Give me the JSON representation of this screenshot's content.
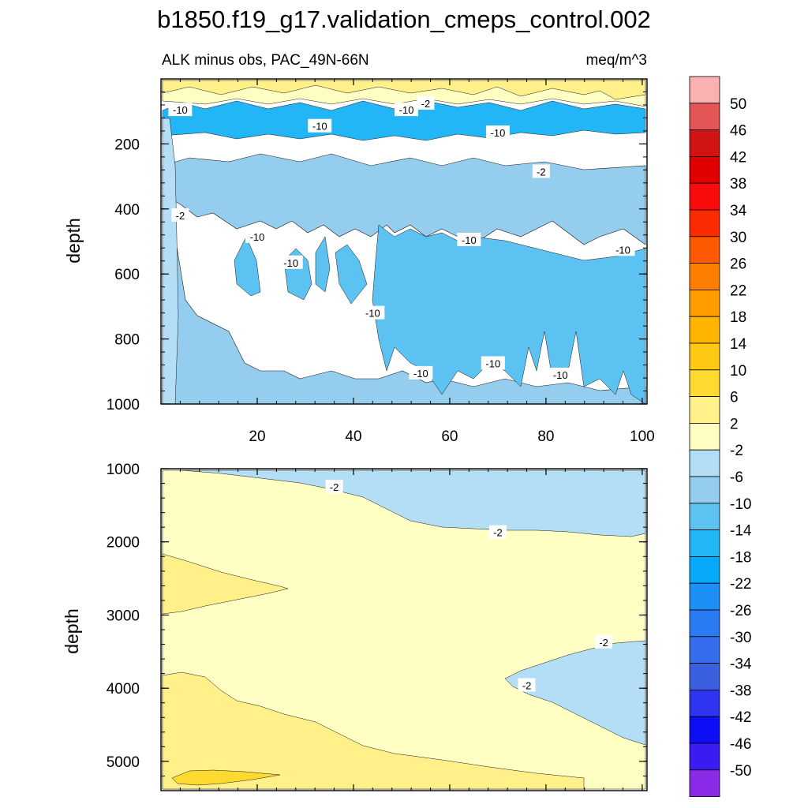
{
  "colors": {
    "pos_50": "#fbb1b1",
    "pos_46": "#e45656",
    "pos_42": "#d01313",
    "pos_38": "#e00000",
    "pos_34": "#fb0c0c",
    "pos_30": "#fc2a00",
    "pos_26": "#fc5900",
    "pos_22": "#fd7e00",
    "pos_18": "#fe9c00",
    "pos_14": "#feb400",
    "pos_10": "#fec813",
    "pos_6": "#feda30",
    "pos_2": "#fff08a",
    "neutral": "#ffffc4",
    "neg_2": "#b3def5",
    "neg_6": "#94cdee",
    "neg_10": "#5bc2f1",
    "neg_14": "#22b6f6",
    "neg_18": "#06a9f9",
    "neg_22": "#1d8ff7",
    "neg_26": "#2a7bf4",
    "neg_30": "#346ded",
    "neg_34": "#3a60e0",
    "neg_38": "#2e34f0",
    "neg_42": "#0d0df6",
    "neg_46": "#3b1cf0",
    "neg_50": "#8a2ae6"
  },
  "chart_data": {
    "type": "heatmap",
    "title": "b1850.f19_g17.validation_cmeps_control.002",
    "subtitle_left": "ALK minus obs, PAC_49N-66N",
    "subtitle_right": "meq/m^3",
    "colorbar": {
      "levels": [
        "50",
        "46",
        "42",
        "38",
        "34",
        "30",
        "26",
        "22",
        "18",
        "14",
        "10",
        "6",
        "2",
        "-2",
        "-6",
        "-10",
        "-14",
        "-18",
        "-22",
        "-26",
        "-30",
        "-34",
        "-38",
        "-42",
        "-46",
        "-50"
      ],
      "fills": [
        "pos_50",
        "pos_46",
        "pos_42",
        "pos_38",
        "pos_34",
        "pos_30",
        "pos_26",
        "pos_22",
        "pos_18",
        "pos_14",
        "pos_10",
        "pos_6",
        "pos_2",
        "neutral",
        "neg_2",
        "neg_6",
        "neg_10",
        "neg_14",
        "neg_18",
        "neg_22",
        "neg_26",
        "neg_30",
        "neg_34",
        "neg_38",
        "neg_42",
        "neg_46",
        "neg_50"
      ]
    },
    "panels": [
      {
        "id": "upper",
        "ylabel": "depth",
        "xlim": [
          0,
          101
        ],
        "ylim": [
          0,
          1000
        ],
        "xticks": [
          "20",
          "40",
          "60",
          "80",
          "100"
        ],
        "yticks": [
          "200",
          "400",
          "600",
          "800",
          "1000"
        ],
        "regions": [
          {
            "fill": "neg_6",
            "x": [
              1,
              101
            ],
            "depth": [
              210,
              1000
            ],
            "note": "broad -6 to -10 band below the surface layer"
          },
          {
            "fill": "neg_10",
            "x": [
              46,
              101
            ],
            "depth": [
              450,
              1000
            ],
            "note": "core of -10 to -14 east of x=45"
          },
          {
            "fill": "neg_10",
            "x": [
              17,
              44
            ],
            "depth": [
              500,
              690
            ],
            "note": "patches of -10 to -14 near 600 m"
          },
          {
            "fill": "neg_14",
            "x": [
              1,
              101
            ],
            "depth": [
              90,
              170
            ],
            "note": "subsurface minimum near 120 m"
          },
          {
            "fill": "neg_2",
            "x": [
              1,
              6
            ],
            "depth": [
              150,
              1000
            ],
            "note": "west-edge -2 to -6 strip"
          },
          {
            "fill": "neutral",
            "x": [
              1,
              101
            ],
            "depth": [
              0,
              60
            ],
            "note": "near-surface -2 to 2"
          },
          {
            "fill": "pos_2",
            "x": [
              1,
              101
            ],
            "depth": [
              0,
              50
            ],
            "note": "surface 2 to 10 patches"
          }
        ],
        "contour_labels": [
          {
            "text": "-10",
            "x": 4,
            "depth": 95
          },
          {
            "text": "-10",
            "x": 33,
            "depth": 145
          },
          {
            "text": "-10",
            "x": 51,
            "depth": 95
          },
          {
            "text": "-2",
            "x": 55,
            "depth": 75
          },
          {
            "text": "-10",
            "x": 70,
            "depth": 165
          },
          {
            "text": "-2",
            "x": 79,
            "depth": 285
          },
          {
            "text": "-2",
            "x": 4,
            "depth": 420
          },
          {
            "text": "-10",
            "x": 20,
            "depth": 485
          },
          {
            "text": "-10",
            "x": 27,
            "depth": 565
          },
          {
            "text": "-10",
            "x": 64,
            "depth": 495
          },
          {
            "text": "-10",
            "x": 96,
            "depth": 525
          },
          {
            "text": "-10",
            "x": 44,
            "depth": 720
          },
          {
            "text": "-10",
            "x": 54,
            "depth": 905
          },
          {
            "text": "-10",
            "x": 69,
            "depth": 875
          },
          {
            "text": "-10",
            "x": 83,
            "depth": 910
          }
        ]
      },
      {
        "id": "lower",
        "ylabel": "depth",
        "xlim": [
          0,
          101
        ],
        "ylim": [
          1000,
          5400
        ],
        "xticks": [
          "20",
          "40",
          "60",
          "80",
          "100"
        ],
        "yticks": [
          "1000",
          "2000",
          "3000",
          "4000",
          "5000"
        ],
        "regions": [
          {
            "fill": "neutral",
            "x": [
              1,
              101
            ],
            "depth": [
              1000,
              5400
            ],
            "note": "bulk -2 to 2"
          },
          {
            "fill": "neg_2",
            "x": [
              5,
              101
            ],
            "depth": [
              1000,
              1900
            ],
            "note": "upper -2 to -6 wedge"
          },
          {
            "fill": "neg_2",
            "x": [
              70,
              101
            ],
            "depth": [
              3300,
              4900
            ],
            "note": "deep eastern -2 to -6 tongue"
          },
          {
            "fill": "pos_2",
            "x": [
              1,
              26
            ],
            "depth": [
              2150,
              2950
            ],
            "note": "2 to 6 lens"
          },
          {
            "fill": "pos_2",
            "x": [
              1,
              82
            ],
            "depth": [
              3800,
              5400
            ],
            "note": "bottom 2 to 6 wedge"
          },
          {
            "fill": "pos_6",
            "x": [
              3,
              25
            ],
            "depth": [
              5000,
              5300
            ],
            "note": "small 6 to 10 core"
          }
        ],
        "contour_labels": [
          {
            "text": "-2",
            "x": 36,
            "depth": 1250
          },
          {
            "text": "-2",
            "x": 70,
            "depth": 1870
          },
          {
            "text": "-2",
            "x": 92,
            "depth": 3370
          },
          {
            "text": "-2",
            "x": 76,
            "depth": 3960
          }
        ]
      }
    ]
  }
}
